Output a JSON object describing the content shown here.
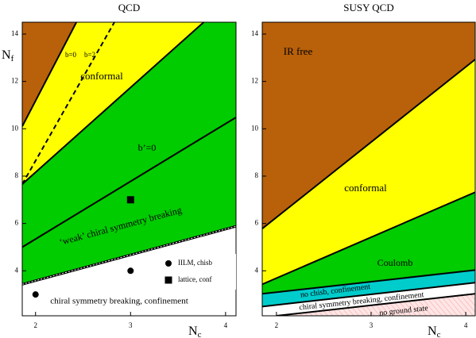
{
  "chart_data": [
    {
      "type": "phase",
      "title": "QCD",
      "x_label": {
        "text": "N",
        "sub": "c"
      },
      "y_label": {
        "text": "N",
        "sub": "f"
      },
      "xlim": [
        1.86,
        4.11
      ],
      "ylim": [
        2.1,
        14.5
      ],
      "xticks": [
        2,
        3,
        4
      ],
      "yticks": [
        4,
        6,
        8,
        10,
        12,
        14
      ],
      "boundaries": [
        {
          "x": [
            1.86,
            4.11
          ],
          "y": [
            3.43,
            5.88
          ],
          "style": "dotted"
        },
        {
          "x": [
            1.86,
            4.11
          ],
          "y": [
            5.0,
            10.48
          ],
          "style": "solid"
        },
        {
          "x": [
            1.86,
            3.77
          ],
          "y": [
            7.66,
            14.5
          ],
          "style": "solid"
        },
        {
          "x": [
            1.86,
            2.83
          ],
          "y": [
            7.66,
            14.5
          ],
          "style": "dashed"
        },
        {
          "x": [
            1.86,
            2.43
          ],
          "y": [
            10.1,
            14.5
          ],
          "style": "solid"
        }
      ],
      "colors": [
        "#ffffff",
        "#00cc00",
        "#00cc00",
        "#ffff00",
        "#ffff00",
        "#b8600a"
      ],
      "annotations": [
        "conformal",
        "b=0",
        "b=2",
        "b’=0",
        "‘weak’ chiral symmetry breaking",
        "chiral symmetry breaking, confinement"
      ],
      "points": [
        {
          "name": "IILM, chisb",
          "marker": "circle",
          "x": [
            2,
            3
          ],
          "y": [
            3,
            4
          ]
        },
        {
          "name": "lattice, conf",
          "marker": "square",
          "x": [
            3
          ],
          "y": [
            7
          ]
        }
      ]
    },
    {
      "type": "phase",
      "title": "SUSY QCD",
      "x_label": {
        "text": "N",
        "sub": "c"
      },
      "xlim": [
        1.85,
        4.1
      ],
      "ylim": [
        2.1,
        14.5
      ],
      "xticks": [
        2,
        3,
        4
      ],
      "yticks": [
        4,
        6,
        8,
        10,
        12,
        14
      ],
      "boundaries": [
        {
          "x": [
            2,
            4.1
          ],
          "y": [
            2.1,
            3.03
          ],
          "style": "solid"
        },
        {
          "x": [
            1.85,
            4.1
          ],
          "y": [
            2.49,
            3.5
          ],
          "style": "solid"
        },
        {
          "x": [
            1.85,
            4.1
          ],
          "y": [
            3.03,
            4.03
          ],
          "style": "solid"
        },
        {
          "x": [
            1.85,
            4.1
          ],
          "y": [
            3.43,
            7.32
          ],
          "style": "solid"
        },
        {
          "x": [
            1.85,
            4.1
          ],
          "y": [
            5.78,
            12.93
          ],
          "style": "solid"
        }
      ],
      "colors": [
        "url(#hatch)",
        "#ffffff",
        "#00cccc",
        "#00cc00",
        "#ffff00",
        "#b8600a"
      ],
      "annotations": [
        "IR free",
        "conformal",
        "Coulomb",
        "no chisb, confinement",
        "chiral symmetry breaking, confinement",
        "no ground state"
      ]
    }
  ]
}
